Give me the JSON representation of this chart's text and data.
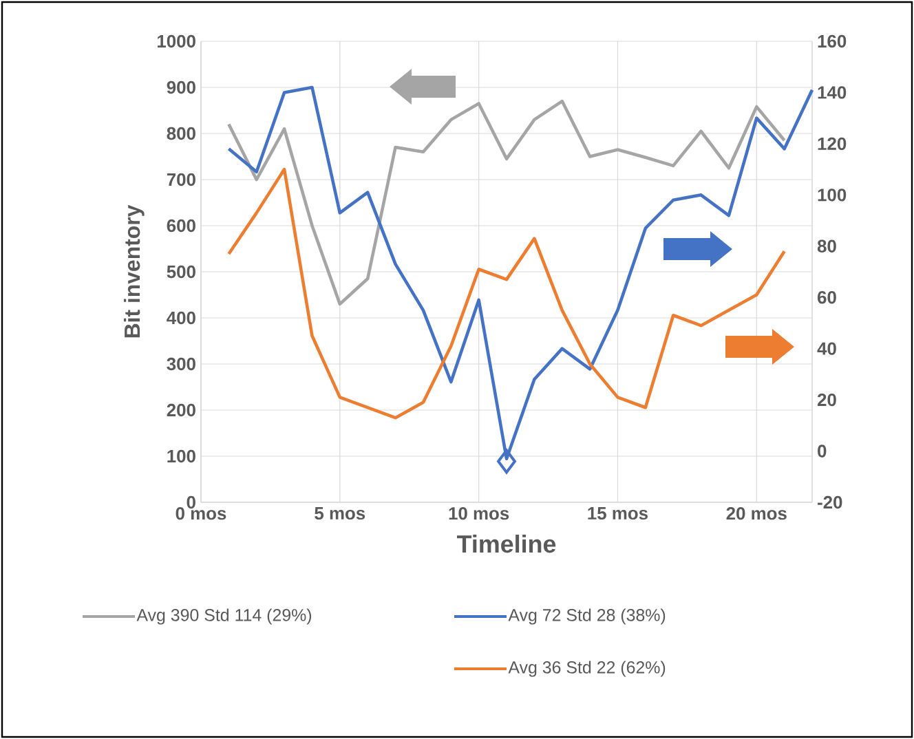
{
  "chart_data": {
    "type": "line",
    "xlabel": "Timeline",
    "ylabel": "Bit inventory",
    "xlim": [
      0,
      22
    ],
    "xticks": [
      {
        "value": 0,
        "label": "0 mos"
      },
      {
        "value": 5,
        "label": "5 mos"
      },
      {
        "value": 10,
        "label": "10 mos"
      },
      {
        "value": 15,
        "label": "15 mos"
      },
      {
        "value": 20,
        "label": "20 mos"
      }
    ],
    "ylim": [
      0,
      1000
    ],
    "yticks": [
      0,
      100,
      200,
      300,
      400,
      500,
      600,
      700,
      800,
      900,
      1000
    ],
    "y2lim": [
      -20,
      160
    ],
    "y2ticks": [
      -20,
      0,
      20,
      40,
      60,
      80,
      100,
      120,
      140,
      160
    ],
    "grid": true,
    "legend": "bottom",
    "marker": "none",
    "series": [
      {
        "name": "Avg 390 Std 114 (29%)",
        "color": "#a5a5a5",
        "axis": "y",
        "x": [
          1,
          2,
          3,
          4,
          5,
          6,
          7,
          8,
          9,
          10,
          11,
          12,
          13,
          14,
          15,
          16,
          17,
          18,
          19,
          20,
          21
        ],
        "values": [
          820,
          700,
          810,
          600,
          430,
          485,
          770,
          760,
          830,
          865,
          745,
          830,
          870,
          750,
          765,
          748,
          730,
          805,
          725,
          858,
          785
        ]
      },
      {
        "name": "Avg 72 Std 28 (38%)",
        "color": "#4472c4",
        "axis": "y2",
        "x": [
          1,
          2,
          3,
          4,
          5,
          6,
          7,
          8,
          9,
          10,
          11,
          12,
          13,
          14,
          15,
          16,
          17,
          18,
          19,
          20,
          21,
          22
        ],
        "values": [
          118,
          109,
          140,
          142,
          93,
          101,
          73,
          55,
          27,
          59,
          -3,
          28,
          40,
          32,
          55,
          87,
          98,
          100,
          92,
          130,
          118,
          141
        ]
      },
      {
        "name": "Avg 36 Std 22 (62%)",
        "color": "#ed7d31",
        "axis": "y2",
        "x": [
          1,
          2,
          3,
          4,
          5,
          6,
          7,
          8,
          9,
          10,
          11,
          12,
          13,
          14,
          15,
          16,
          17,
          18,
          19,
          20,
          21
        ],
        "values": [
          77,
          93,
          110,
          45,
          21,
          17,
          13,
          19,
          41,
          71,
          67,
          83,
          55,
          34,
          21,
          17,
          53,
          49,
          55,
          61,
          78
        ]
      },
      {
        "type": "scatter",
        "marker": "diamond",
        "color": "#4472c4",
        "axis": "y2",
        "x": [
          11
        ],
        "values": [
          -4
        ]
      }
    ]
  }
}
